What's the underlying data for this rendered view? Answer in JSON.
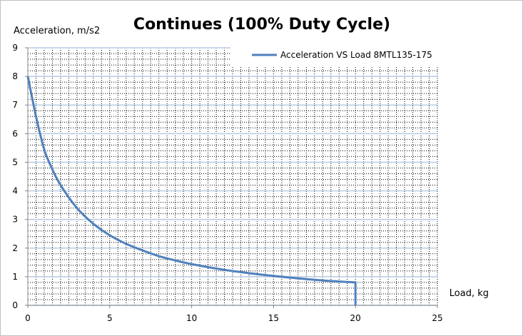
{
  "chart_data": {
    "type": "line",
    "title": "Continues (100% Duty Cycle)",
    "xlabel": "Load, kg",
    "ylabel": "Acceleration, m/s2",
    "xlim": [
      0,
      25
    ],
    "ylim": [
      0,
      9
    ],
    "x_ticks": [
      "0",
      "5",
      "10",
      "15",
      "20",
      "25"
    ],
    "y_ticks": [
      "0",
      "1",
      "2",
      "3",
      "4",
      "5",
      "6",
      "7",
      "8",
      "9"
    ],
    "grid": true,
    "legend_position": "top-right",
    "series": [
      {
        "name": "Acceleration VS Load 8MTL135-175",
        "color": "#4f81bd",
        "x": [
          0,
          0.5,
          1,
          1.5,
          2,
          3,
          4,
          5,
          6,
          7,
          8,
          9,
          10,
          12,
          14,
          16,
          18,
          20,
          20
        ],
        "y": [
          8.0,
          6.6,
          5.45,
          4.75,
          4.2,
          3.4,
          2.85,
          2.45,
          2.15,
          1.92,
          1.72,
          1.57,
          1.44,
          1.24,
          1.09,
          0.97,
          0.87,
          0.8,
          0.0
        ]
      }
    ]
  }
}
